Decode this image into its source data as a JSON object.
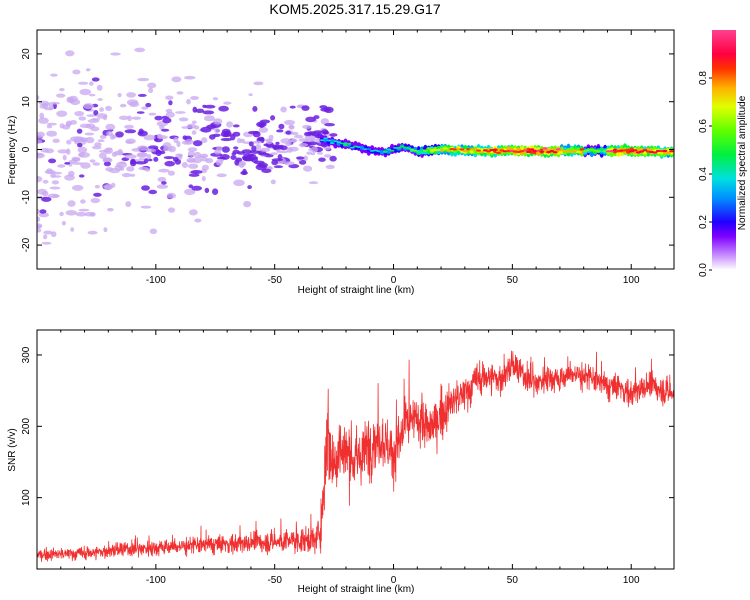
{
  "title": "KOM5.2025.317.15.29.G17",
  "colors": {
    "snr_line": "#f03030",
    "frame": "#000000",
    "blob_light": "#c8a8f0",
    "blob_dark": "#6a1fe0"
  },
  "chart_data": [
    {
      "type": "heatmap",
      "name": "spectrogram",
      "xlabel": "Height of straight line (km)",
      "ylabel": "Frequency (Hz)",
      "xlim": [
        -150,
        118
      ],
      "ylim": [
        -25,
        25
      ],
      "xticks": [
        -100,
        -50,
        0,
        50,
        100
      ],
      "yticks": [
        -20,
        -10,
        0,
        10,
        20
      ],
      "grid": false,
      "colorbar": {
        "label": "Normalized spectral amplitude",
        "range": [
          0,
          1
        ],
        "ticks": [
          "0.0",
          "0.2",
          "0.4",
          "0.6",
          "0.8"
        ],
        "tick_values": [
          0.0,
          0.2,
          0.4,
          0.6,
          0.8
        ],
        "colormap": "rainbow (white, magenta, blue, cyan, green, yellow, orange, red, pink)"
      },
      "ridge": {
        "description": "dominant spectral peak near 0 Hz for heights above about -30 km",
        "x": [
          -30,
          -25,
          -20,
          -15,
          -10,
          -5,
          0,
          5,
          10,
          20,
          40,
          60,
          80,
          100,
          118
        ],
        "freq": [
          2.0,
          1.5,
          1.0,
          0.5,
          0.0,
          -0.5,
          0.0,
          0.5,
          -0.5,
          0.0,
          -0.3,
          -0.3,
          -0.3,
          -0.3,
          -0.5
        ],
        "amplitude": [
          0.3,
          0.35,
          0.4,
          0.35,
          0.3,
          0.35,
          0.4,
          0.45,
          0.5,
          0.7,
          0.85,
          0.95,
          0.85,
          0.9,
          0.8
        ]
      }
    },
    {
      "type": "line",
      "name": "snr",
      "xlabel": "Height of straight line (km)",
      "ylabel": "SNR (v/v)",
      "xlim": [
        -150,
        118
      ],
      "ylim": [
        0,
        335
      ],
      "xticks": [
        -100,
        -50,
        0,
        50,
        100
      ],
      "yticks": [
        100,
        200,
        300
      ],
      "grid": false,
      "series": [
        {
          "name": "SNR",
          "envelope": {
            "x": [
              -150,
              -130,
              -110,
              -90,
              -70,
              -50,
              -40,
              -32,
              -30,
              -28,
              -26,
              -24,
              -20,
              -15,
              -10,
              -5,
              0,
              5,
              10,
              15,
              20,
              25,
              30,
              35,
              40,
              45,
              50,
              55,
              60,
              65,
              70,
              75,
              80,
              85,
              90,
              95,
              100,
              105,
              110,
              118
            ],
            "mean": [
              20,
              22,
              28,
              32,
              35,
              38,
              40,
              42,
              80,
              200,
              150,
              160,
              165,
              150,
              175,
              185,
              160,
              200,
              210,
              195,
              215,
              235,
              245,
              265,
              270,
              265,
              285,
              270,
              260,
              270,
              265,
              275,
              270,
              265,
              255,
              255,
              245,
              255,
              255,
              245
            ],
            "noise": [
              10,
              12,
              14,
              16,
              18,
              20,
              22,
              24,
              60,
              90,
              70,
              70,
              60,
              55,
              55,
              50,
              50,
              45,
              45,
              40,
              40,
              35,
              35,
              30,
              30,
              30,
              25,
              25,
              25,
              25,
              25,
              25,
              25,
              25,
              25,
              25,
              25,
              25,
              25,
              25
            ]
          }
        }
      ]
    }
  ]
}
